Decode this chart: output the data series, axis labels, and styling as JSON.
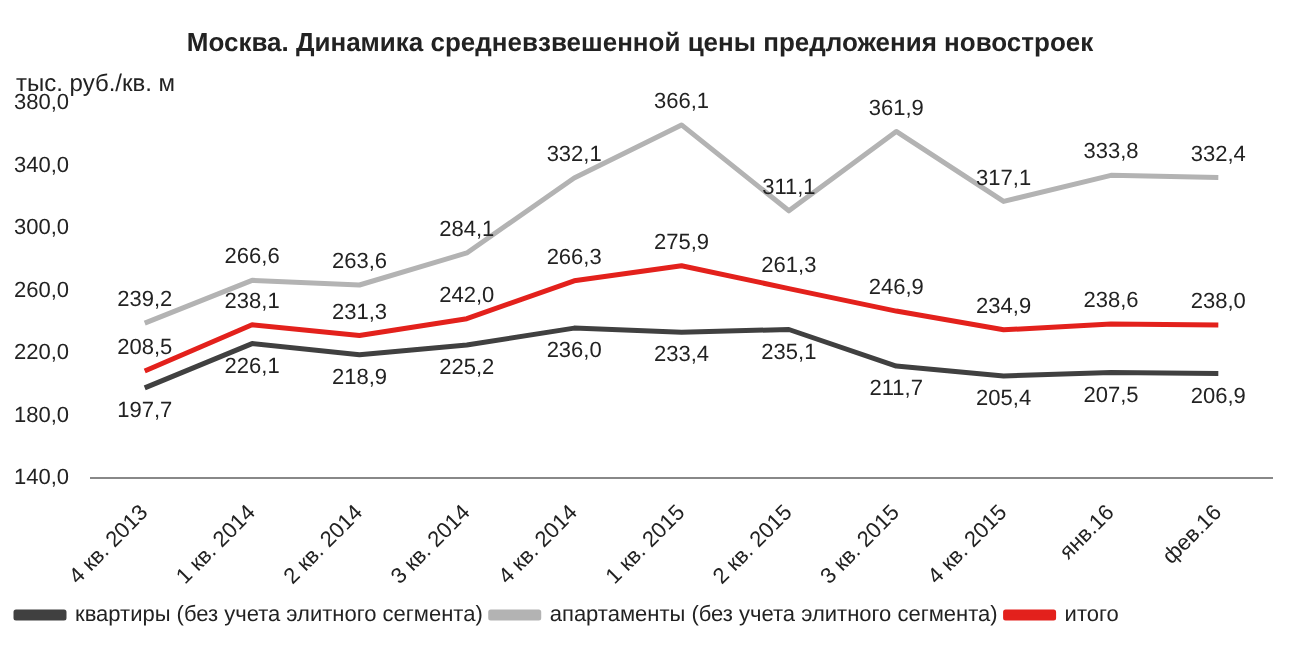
{
  "chart_data": {
    "type": "line",
    "title": "Москва. Динамика средневзвешенной цены предложения новостроек",
    "ylabel": "тыс. руб./кв. м",
    "categories": [
      "4 кв. 2013",
      "1 кв. 2014",
      "2 кв. 2014",
      "3 кв. 2014",
      "4 кв. 2014",
      "1 кв. 2015",
      "2 кв. 2015",
      "3 кв. 2015",
      "4 кв. 2015",
      "янв.16",
      "фев.16"
    ],
    "series": [
      {
        "name": "квартиры (без учета элитного сегмента)",
        "color": "#404040",
        "values": [
          197.7,
          226.1,
          218.9,
          225.2,
          236.0,
          233.4,
          235.1,
          211.7,
          205.4,
          207.5,
          206.9
        ],
        "value_labels": [
          "197,7",
          "226,1",
          "218,9",
          "225,2",
          "236,0",
          "233,4",
          "235,1",
          "211,7",
          "205,4",
          "207,5",
          "206,9"
        ]
      },
      {
        "name": "апартаменты (без учета элитного сегмента)",
        "color": "#b3b3b3",
        "values": [
          239.2,
          266.6,
          263.6,
          284.1,
          332.1,
          366.1,
          311.1,
          361.9,
          317.1,
          333.8,
          332.4
        ],
        "value_labels": [
          "239,2",
          "266,6",
          "263,6",
          "284,1",
          "332,1",
          "366,1",
          "311,1",
          "361,9",
          "317,1",
          "333,8",
          "332,4"
        ]
      },
      {
        "name": "итого",
        "color": "#e3211c",
        "values": [
          208.5,
          238.1,
          231.3,
          242.0,
          266.3,
          275.9,
          261.3,
          246.9,
          234.9,
          238.6,
          238.0
        ],
        "value_labels": [
          "208,5",
          "238,1",
          "231,3",
          "242,0",
          "266,3",
          "275,9",
          "261,3",
          "246,9",
          "234,9",
          "238,6",
          "238,0"
        ]
      }
    ],
    "ylim": [
      140,
      380
    ],
    "yticks": [
      {
        "value": 140,
        "label": "140,0"
      },
      {
        "value": 180,
        "label": "180,0"
      },
      {
        "value": 220,
        "label": "220,0"
      },
      {
        "value": 260,
        "label": "260,0"
      },
      {
        "value": 300,
        "label": "300,0"
      },
      {
        "value": 340,
        "label": "340,0"
      },
      {
        "value": 380,
        "label": "380,0"
      }
    ],
    "grid": false,
    "legend": "bottom",
    "marker": "none",
    "line_style": "solid"
  }
}
